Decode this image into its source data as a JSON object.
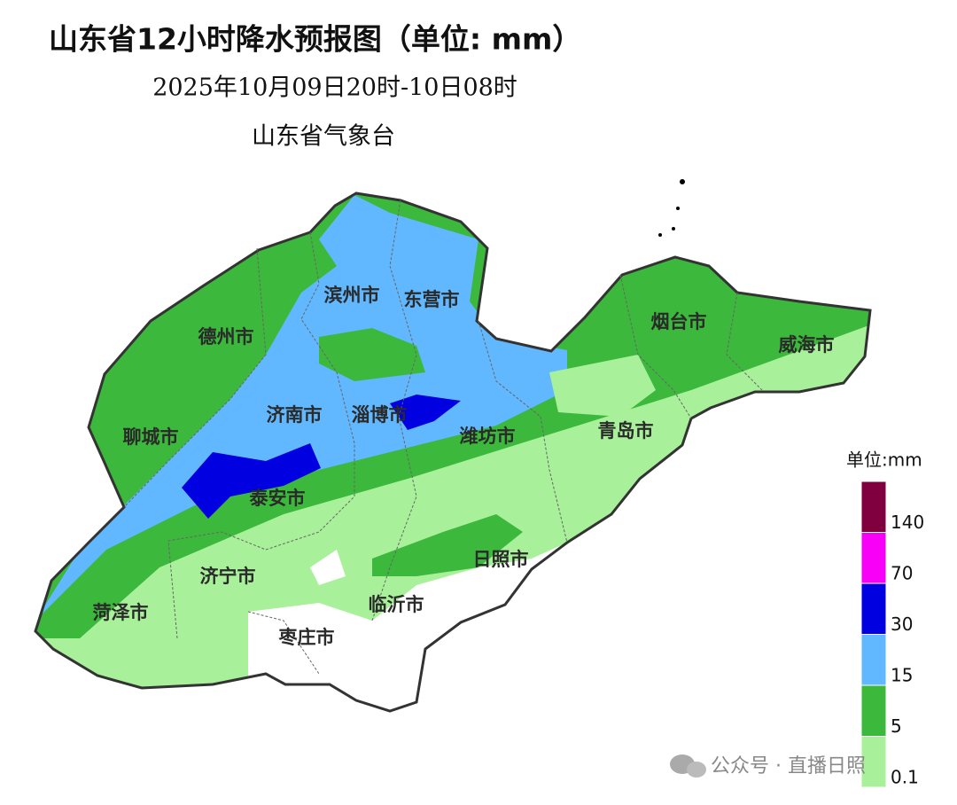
{
  "header": {
    "title": "山东省12小时降水预报图（单位: mm）",
    "subtitle": "2025年10月09日20时-10日08时",
    "issuer": "山东省气象台"
  },
  "cities": [
    "德州市",
    "滨州市",
    "东营市",
    "烟台市",
    "威海市",
    "济南市",
    "淄博市",
    "潍坊市",
    "青岛市",
    "聊城市",
    "泰安市",
    "济宁市",
    "日照市",
    "临沂市",
    "菏泽市",
    "枣庄市"
  ],
  "legend": {
    "title": "单位:mm",
    "ticks": [
      0.1,
      5,
      15,
      30,
      70,
      140
    ],
    "colors": [
      "#a8f09a",
      "#3cb83c",
      "#62b8ff",
      "#0000e0",
      "#f800f8",
      "#80003f"
    ]
  },
  "watermark": "公众号 · 直播日照"
}
